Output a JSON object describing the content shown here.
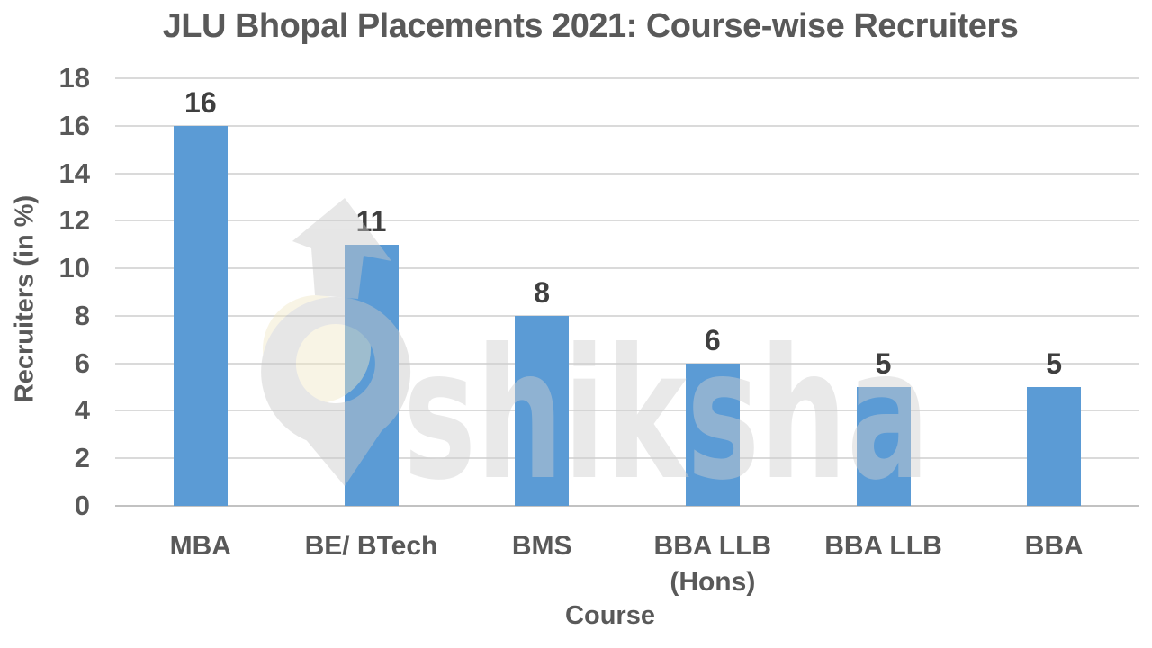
{
  "chart_data": {
    "type": "bar",
    "title": "JLU Bhopal Placements 2021: Course-wise Recruiters",
    "categories": [
      "MBA",
      "BE/ BTech",
      "BMS",
      "BBA LLB\n(Hons)",
      "BBA LLB",
      "BBA"
    ],
    "values": [
      16,
      11,
      8,
      6,
      5,
      5
    ],
    "data_labels": [
      "16",
      "11",
      "8",
      "6",
      "5",
      "5"
    ],
    "xlabel": "Course",
    "ylabel": "Recruiters (in %)",
    "ylim": [
      0,
      18
    ],
    "yticks": [
      0,
      2,
      4,
      6,
      8,
      10,
      12,
      14,
      16,
      18
    ],
    "grid": true,
    "legend": false,
    "bar_color": "#5B9BD5",
    "colors": {
      "title_text": "#595959",
      "axis_text": "#595959",
      "data_label_text": "#3F3F3F",
      "gridline": "#DADADA",
      "axis_baseline": "#C2C2C2",
      "background": "#FFFFFF"
    }
  },
  "watermark": {
    "text": "shiksha",
    "logo_icon": "shiksha-graduation-arrow-pin-logo",
    "text_color": "#E9E9E9",
    "logo_color": "#E7E7E7",
    "accent_color": "#F7F2DF"
  }
}
